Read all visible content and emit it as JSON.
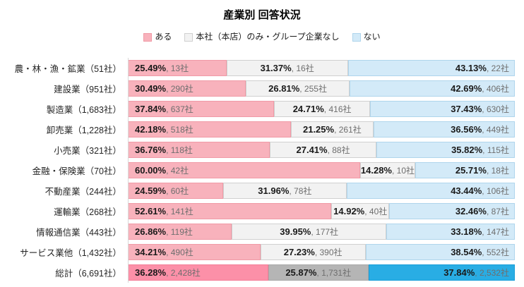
{
  "title": "産業別 回答状況",
  "legend": {
    "items": [
      {
        "key": "aru",
        "label": "ある"
      },
      {
        "key": "honsha-nomi",
        "label": "本社（本店）のみ・グループ企業なし"
      },
      {
        "key": "nai",
        "label": "ない"
      }
    ]
  },
  "palette": {
    "normal": {
      "fill": [
        "#F8B2BC",
        "#F2F2F2",
        "#D3EAF8"
      ],
      "border": [
        "#F09AA6",
        "#D0D0D0",
        "#AFD5EC"
      ]
    },
    "total": {
      "fill": [
        "#FC90A8",
        "#B5B5B5",
        "#29ADE4"
      ],
      "border": [
        "#F37D97",
        "#A8A8A8",
        "#179DD8"
      ]
    }
  },
  "text_colors": {
    "percent": "#1A1A1A",
    "count": "#6E6E6E"
  },
  "chart_data": {
    "type": "bar",
    "orientation": "horizontal",
    "stacked": true,
    "title": "産業別 回答状況",
    "xlabel": "",
    "ylabel": "",
    "xlim": [
      0,
      100
    ],
    "grid": false,
    "legend_position": "top",
    "series_names": [
      "ある",
      "本社（本店）のみ・グループ企業なし",
      "ない"
    ],
    "rows": [
      {
        "label": "農・林・漁・鉱業（51社）",
        "total": false,
        "segments": [
          {
            "value": 25.49,
            "percent": "25.49%",
            "count": "13社"
          },
          {
            "value": 31.37,
            "percent": "31.37%",
            "count": "16社"
          },
          {
            "value": 43.13,
            "percent": "43.13%",
            "count": "22社"
          }
        ]
      },
      {
        "label": "建設業（951社）",
        "total": false,
        "segments": [
          {
            "value": 30.49,
            "percent": "30.49%",
            "count": "290社"
          },
          {
            "value": 26.81,
            "percent": "26.81%",
            "count": "255社"
          },
          {
            "value": 42.69,
            "percent": "42.69%",
            "count": "406社"
          }
        ]
      },
      {
        "label": "製造業（1,683社）",
        "total": false,
        "segments": [
          {
            "value": 37.84,
            "percent": "37.84%",
            "count": "637社"
          },
          {
            "value": 24.71,
            "percent": "24.71%",
            "count": "416社"
          },
          {
            "value": 37.43,
            "percent": "37.43%",
            "count": "630社"
          }
        ]
      },
      {
        "label": "卸売業（1,228社）",
        "total": false,
        "segments": [
          {
            "value": 42.18,
            "percent": "42.18%",
            "count": "518社"
          },
          {
            "value": 21.25,
            "percent": "21.25%",
            "count": "261社"
          },
          {
            "value": 36.56,
            "percent": "36.56%",
            "count": "449社"
          }
        ]
      },
      {
        "label": "小売業（321社）",
        "total": false,
        "segments": [
          {
            "value": 36.76,
            "percent": "36.76%",
            "count": "118社"
          },
          {
            "value": 27.41,
            "percent": "27.41%",
            "count": "88社"
          },
          {
            "value": 35.82,
            "percent": "35.82%",
            "count": "115社"
          }
        ]
      },
      {
        "label": "金融・保険業（70社）",
        "total": false,
        "segments": [
          {
            "value": 60.0,
            "percent": "60.00%",
            "count": "42社"
          },
          {
            "value": 14.28,
            "percent": "14.28%",
            "count": "10社"
          },
          {
            "value": 25.71,
            "percent": "25.71%",
            "count": "18社"
          }
        ]
      },
      {
        "label": "不動産業（244社）",
        "total": false,
        "segments": [
          {
            "value": 24.59,
            "percent": "24.59%",
            "count": "60社"
          },
          {
            "value": 31.96,
            "percent": "31.96%",
            "count": "78社"
          },
          {
            "value": 43.44,
            "percent": "43.44%",
            "count": "106社"
          }
        ]
      },
      {
        "label": "運輸業（268社）",
        "total": false,
        "segments": [
          {
            "value": 52.61,
            "percent": "52.61%",
            "count": "141社"
          },
          {
            "value": 14.92,
            "percent": "14.92%",
            "count": "40社"
          },
          {
            "value": 32.46,
            "percent": "32.46%",
            "count": "87社"
          }
        ]
      },
      {
        "label": "情報通信業（443社）",
        "total": false,
        "segments": [
          {
            "value": 26.86,
            "percent": "26.86%",
            "count": "119社"
          },
          {
            "value": 39.95,
            "percent": "39.95%",
            "count": "177社"
          },
          {
            "value": 33.18,
            "percent": "33.18%",
            "count": "147社"
          }
        ]
      },
      {
        "label": "サービス業他（1,432社）",
        "total": false,
        "segments": [
          {
            "value": 34.21,
            "percent": "34.21%",
            "count": "490社"
          },
          {
            "value": 27.23,
            "percent": "27.23%",
            "count": "390社"
          },
          {
            "value": 38.54,
            "percent": "38.54%",
            "count": "552社"
          }
        ]
      },
      {
        "label": "総計（6,691社）",
        "total": true,
        "segments": [
          {
            "value": 36.28,
            "percent": "36.28%",
            "count": "2,428社"
          },
          {
            "value": 25.87,
            "percent": "25.87%",
            "count": "1,731社"
          },
          {
            "value": 37.84,
            "percent": "37.84%",
            "count": "2,532社"
          }
        ]
      }
    ]
  }
}
